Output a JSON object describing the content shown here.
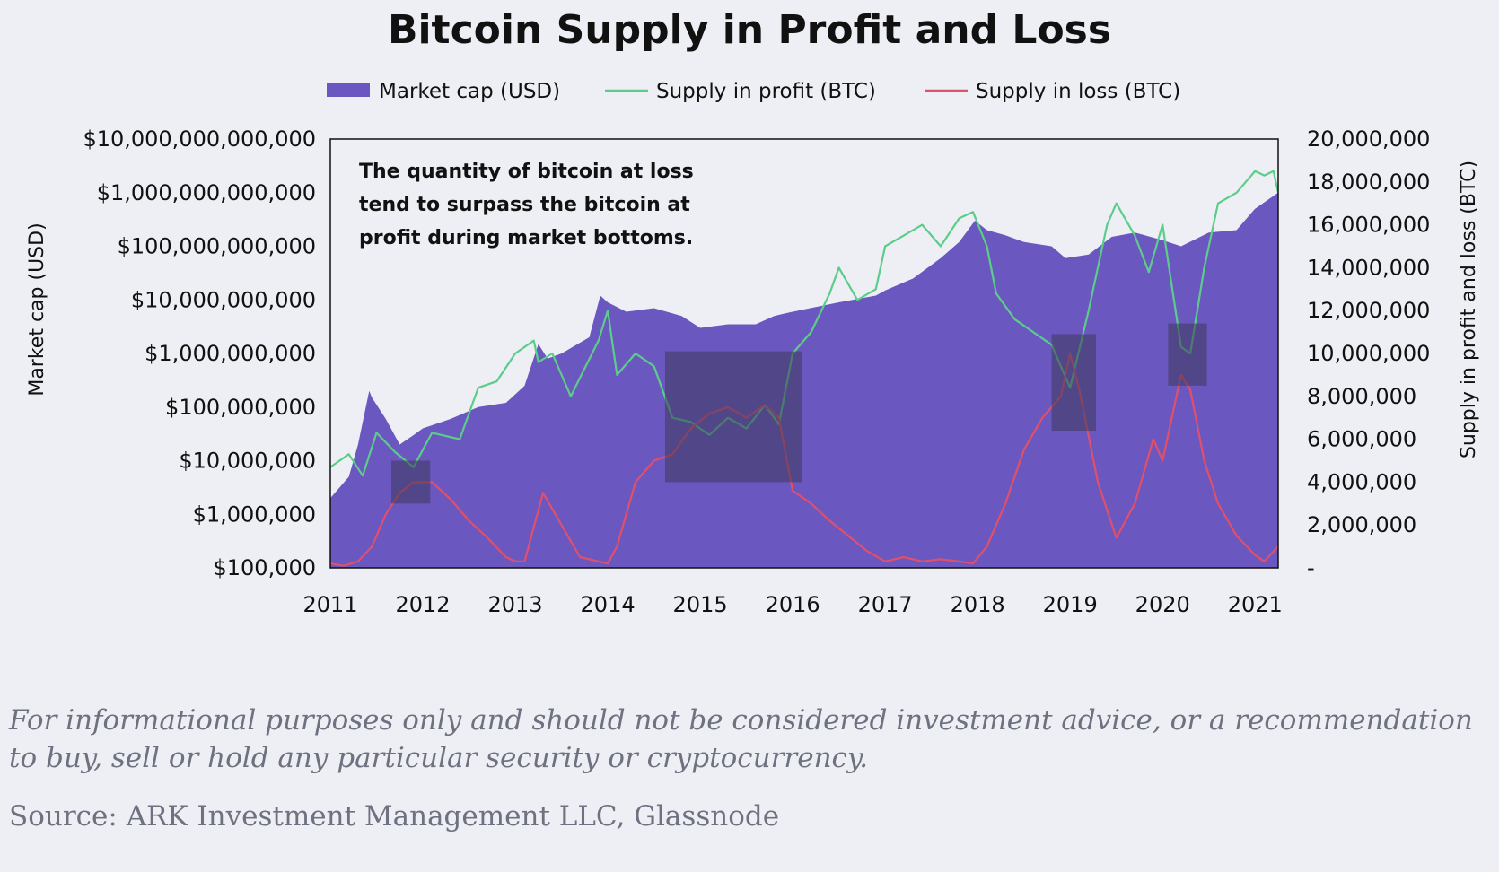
{
  "footer": {
    "disclaimer": "For informational purposes only and should not be considered investment advice, or a recommendation to buy, sell or hold any particular security or cryptocurrency.",
    "source": "Source: ARK Investment Management LLC, Glassnode"
  },
  "chart_data": {
    "type": "area",
    "title": "Bitcoin Supply in Profit and Loss",
    "annotation": [
      "The quantity of bitcoin at loss",
      "tend to surpass the bitcoin at",
      "profit during market bottoms."
    ],
    "legend_position": "top",
    "grid": false,
    "xlabel": "",
    "x_ticks": [
      "2011",
      "2012",
      "2013",
      "2014",
      "2015",
      "2016",
      "2017",
      "2018",
      "2019",
      "2020",
      "2021"
    ],
    "x_range": [
      2011.0,
      2021.25
    ],
    "y_left": {
      "label": "Market cap (USD)",
      "scale": "log",
      "range": [
        100000,
        10000000000000
      ],
      "ticks": [
        "$100,000",
        "$1,000,000",
        "$10,000,000",
        "$100,000,000",
        "$1,000,000,000",
        "$10,000,000,000",
        "$100,000,000,000",
        "$1,000,000,000,000",
        "$10,000,000,000,000"
      ]
    },
    "y_right": {
      "label": "Supply in profit and loss (BTC)",
      "scale": "linear",
      "range": [
        0,
        20000000
      ],
      "ticks": [
        "-",
        "2,000,000",
        "4,000,000",
        "6,000,000",
        "8,000,000",
        "10,000,000",
        "12,000,000",
        "14,000,000",
        "16,000,000",
        "18,000,000",
        "20,000,000"
      ]
    },
    "colors": {
      "market_cap": "#6b57c0",
      "supply_in_profit": "#5ccc8a",
      "supply_in_loss": "#e0506a",
      "highlight": "#3d3a5a"
    },
    "series": [
      {
        "name": "Market cap (USD)",
        "axis": "left",
        "x": [
          2011.0,
          2011.2,
          2011.3,
          2011.42,
          2011.45,
          2011.6,
          2011.75,
          2011.9,
          2012.0,
          2012.3,
          2012.6,
          2012.9,
          2013.1,
          2013.25,
          2013.35,
          2013.5,
          2013.8,
          2013.92,
          2014.0,
          2014.2,
          2014.5,
          2014.8,
          2015.0,
          2015.3,
          2015.6,
          2015.8,
          2015.9,
          2016.0,
          2016.5,
          2016.9,
          2017.0,
          2017.3,
          2017.6,
          2017.8,
          2017.97,
          2018.1,
          2018.3,
          2018.5,
          2018.8,
          2018.95,
          2019.2,
          2019.45,
          2019.7,
          2020.0,
          2020.2,
          2020.5,
          2020.8,
          2021.0,
          2021.25
        ],
        "values": [
          2000000,
          5000000,
          20000000,
          200000000,
          150000000,
          60000000,
          20000000,
          30000000,
          40000000,
          60000000,
          100000000,
          120000000,
          250000000,
          1500000000,
          800000000,
          1000000000,
          2000000000,
          12000000000,
          9000000000,
          6000000000,
          7000000000,
          5000000000,
          3000000000,
          3500000000,
          3500000000,
          5000000000,
          5500000000,
          6000000000,
          9000000000,
          12000000000,
          15000000000,
          25000000000,
          60000000000,
          120000000000,
          300000000000,
          200000000000,
          160000000000,
          120000000000,
          100000000000,
          60000000000,
          70000000000,
          150000000000,
          180000000000,
          130000000000,
          100000000000,
          180000000000,
          200000000000,
          500000000000,
          1000000000000
        ]
      },
      {
        "name": "Supply in profit (BTC)",
        "axis": "right",
        "x": [
          2011.0,
          2011.2,
          2011.35,
          2011.5,
          2011.7,
          2011.9,
          2012.1,
          2012.4,
          2012.6,
          2012.8,
          2013.0,
          2013.2,
          2013.25,
          2013.4,
          2013.6,
          2013.75,
          2013.9,
          2014.0,
          2014.1,
          2014.3,
          2014.5,
          2014.7,
          2014.9,
          2015.1,
          2015.3,
          2015.5,
          2015.7,
          2015.85,
          2016.0,
          2016.2,
          2016.4,
          2016.5,
          2016.7,
          2016.9,
          2017.0,
          2017.2,
          2017.4,
          2017.6,
          2017.8,
          2017.95,
          2018.1,
          2018.2,
          2018.4,
          2018.6,
          2018.8,
          2019.0,
          2019.2,
          2019.4,
          2019.5,
          2019.7,
          2019.85,
          2020.0,
          2020.2,
          2020.3,
          2020.45,
          2020.6,
          2020.8,
          2021.0,
          2021.1,
          2021.2,
          2021.25
        ],
        "values": [
          4700000,
          5300000,
          4300000,
          6300000,
          5400000,
          4700000,
          6300000,
          6000000,
          8400000,
          8700000,
          10000000,
          10600000,
          9600000,
          10000000,
          8000000,
          9300000,
          10600000,
          12000000,
          9000000,
          10000000,
          9400000,
          7000000,
          6800000,
          6200000,
          7000000,
          6500000,
          7600000,
          6700000,
          10000000,
          11000000,
          12800000,
          14000000,
          12500000,
          13000000,
          15000000,
          15500000,
          16000000,
          15000000,
          16300000,
          16600000,
          15000000,
          12800000,
          11600000,
          11000000,
          10400000,
          8400000,
          12000000,
          16000000,
          17000000,
          15500000,
          13800000,
          16000000,
          10300000,
          10000000,
          14000000,
          17000000,
          17500000,
          18500000,
          18300000,
          18500000,
          17500000
        ]
      },
      {
        "name": "Supply in loss (BTC)",
        "axis": "right",
        "x": [
          2011.0,
          2011.15,
          2011.3,
          2011.45,
          2011.6,
          2011.75,
          2011.9,
          2012.1,
          2012.3,
          2012.5,
          2012.7,
          2012.9,
          2013.0,
          2013.1,
          2013.3,
          2013.5,
          2013.7,
          2013.9,
          2014.0,
          2014.1,
          2014.3,
          2014.5,
          2014.7,
          2014.9,
          2015.1,
          2015.3,
          2015.5,
          2015.7,
          2015.85,
          2016.0,
          2016.2,
          2016.4,
          2016.6,
          2016.8,
          2017.0,
          2017.2,
          2017.4,
          2017.6,
          2017.8,
          2017.95,
          2018.1,
          2018.3,
          2018.5,
          2018.7,
          2018.9,
          2019.0,
          2019.1,
          2019.3,
          2019.5,
          2019.7,
          2019.9,
          2020.0,
          2020.2,
          2020.3,
          2020.45,
          2020.6,
          2020.8,
          2021.0,
          2021.1,
          2021.25
        ],
        "values": [
          200000,
          100000,
          300000,
          1000000,
          2500000,
          3500000,
          4000000,
          4000000,
          3200000,
          2200000,
          1400000,
          500000,
          300000,
          300000,
          3500000,
          2000000,
          500000,
          300000,
          200000,
          1000000,
          4000000,
          5000000,
          5300000,
          6500000,
          7200000,
          7500000,
          7000000,
          7600000,
          7000000,
          3600000,
          3000000,
          2200000,
          1500000,
          800000,
          300000,
          500000,
          300000,
          400000,
          300000,
          200000,
          1000000,
          3000000,
          5500000,
          7000000,
          8000000,
          10000000,
          8300000,
          4000000,
          1400000,
          3000000,
          6000000,
          5000000,
          9000000,
          8300000,
          5000000,
          3000000,
          1500000,
          600000,
          300000,
          1000000
        ]
      }
    ],
    "highlight_boxes": [
      {
        "x_start": 2011.66,
        "x_end": 2012.08,
        "y_low": 3000000,
        "y_high": 5000000
      },
      {
        "x_start": 2014.62,
        "x_end": 2016.1,
        "y_low": 4000000,
        "y_high": 10100000
      },
      {
        "x_start": 2018.8,
        "x_end": 2019.28,
        "y_low": 6400000,
        "y_high": 10900000
      },
      {
        "x_start": 2020.06,
        "x_end": 2020.48,
        "y_low": 8500000,
        "y_high": 11400000
      }
    ]
  }
}
